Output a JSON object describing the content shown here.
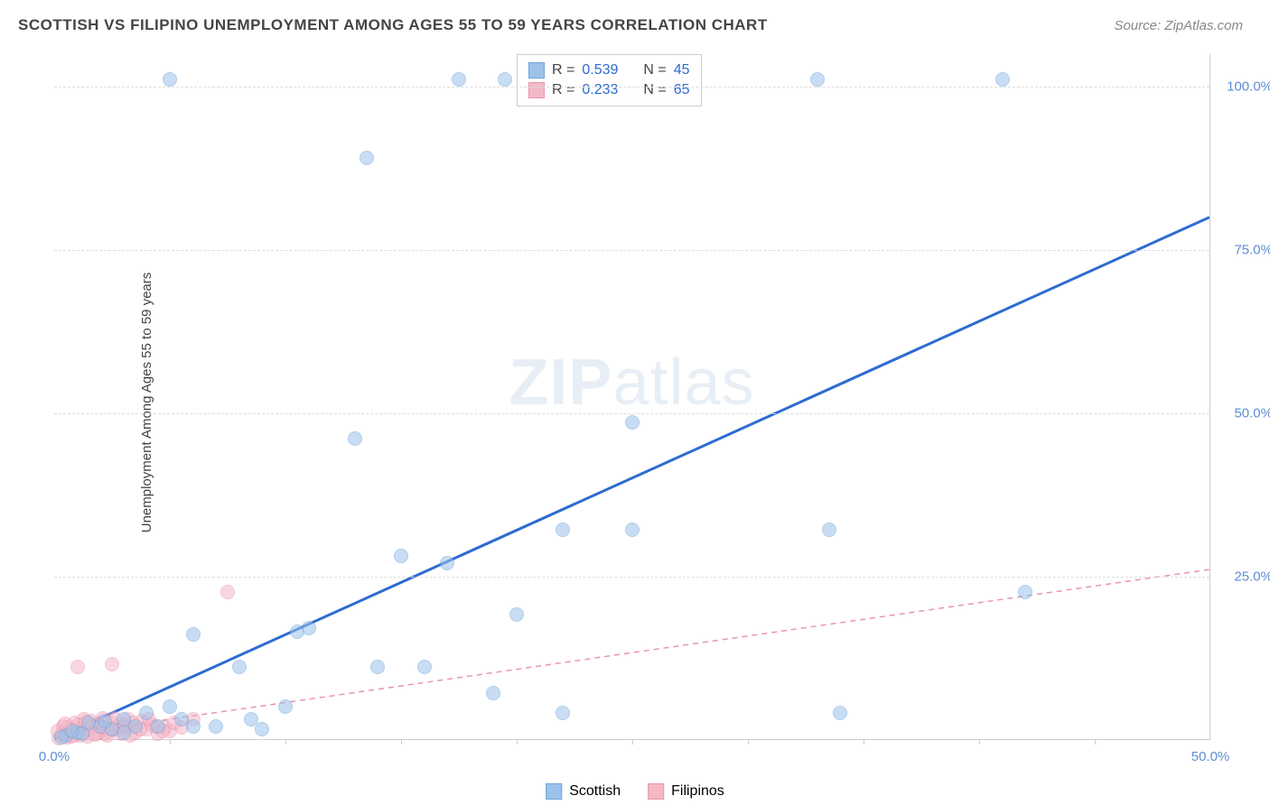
{
  "title": "SCOTTISH VS FILIPINO UNEMPLOYMENT AMONG AGES 55 TO 59 YEARS CORRELATION CHART",
  "source": "Source: ZipAtlas.com",
  "ylabel": "Unemployment Among Ages 55 to 59 years",
  "watermark_bold": "ZIP",
  "watermark_light": "atlas",
  "chart": {
    "type": "scatter",
    "xlim": [
      0,
      50
    ],
    "ylim": [
      0,
      105
    ],
    "xticks": [
      0,
      50
    ],
    "xtick_labels": [
      "0.0%",
      "50.0%"
    ],
    "yticks": [
      25,
      50,
      75,
      100
    ],
    "ytick_labels": [
      "25.0%",
      "50.0%",
      "75.0%",
      "100.0%"
    ],
    "xtick_marks": [
      5,
      10,
      15,
      20,
      25,
      30,
      35,
      40,
      45
    ],
    "grid_color": "#dddddd",
    "background_color": "#ffffff",
    "point_radius": 8,
    "point_opacity": 0.55,
    "series": [
      {
        "name": "Scottish",
        "color": "#9cc3eb",
        "stroke": "#6fa3d8",
        "trend_color": "#2d6bd1",
        "trend_width": 3,
        "trend_dash": "none",
        "trend": {
          "x1": 0,
          "y1": 0,
          "x2": 50,
          "y2": 80
        },
        "R": "0.539",
        "N": "45",
        "points": [
          [
            17.5,
            101
          ],
          [
            19.5,
            101
          ],
          [
            33,
            101
          ],
          [
            41,
            101
          ],
          [
            5,
            101
          ],
          [
            13.5,
            89
          ],
          [
            25,
            48.5
          ],
          [
            13,
            46
          ],
          [
            25,
            32
          ],
          [
            22,
            32
          ],
          [
            33.5,
            32
          ],
          [
            15,
            28
          ],
          [
            17,
            27
          ],
          [
            42,
            22.5
          ],
          [
            20,
            19
          ],
          [
            11,
            17
          ],
          [
            10.5,
            16.5
          ],
          [
            6,
            16
          ],
          [
            19,
            7
          ],
          [
            16,
            11
          ],
          [
            14,
            11
          ],
          [
            8,
            11
          ],
          [
            22,
            4
          ],
          [
            10,
            5
          ],
          [
            5,
            5
          ],
          [
            5.5,
            3
          ],
          [
            4,
            4
          ],
          [
            34,
            4
          ],
          [
            1,
            1
          ],
          [
            2,
            2
          ],
          [
            3,
            3
          ],
          [
            1.5,
            2.5
          ],
          [
            2.5,
            1.5
          ],
          [
            3.5,
            2
          ],
          [
            0.5,
            0.5
          ],
          [
            0.8,
            1.2
          ],
          [
            1.2,
            0.8
          ],
          [
            2.2,
            2.8
          ],
          [
            4.5,
            2
          ],
          [
            6,
            2
          ],
          [
            3,
            1
          ],
          [
            7,
            2
          ],
          [
            8.5,
            3
          ],
          [
            9,
            1.5
          ],
          [
            0.3,
            0.3
          ]
        ]
      },
      {
        "name": "Filipinos",
        "color": "#f5b8c7",
        "stroke": "#e994ae",
        "trend_color": "#e994ae",
        "trend_width": 1.5,
        "trend_dash": "6,5",
        "trend": {
          "x1": 0,
          "y1": 0.5,
          "x2": 50,
          "y2": 26
        },
        "R": "0.233",
        "N": "65",
        "points": [
          [
            7.5,
            22.5
          ],
          [
            1,
            11
          ],
          [
            2.5,
            11.5
          ],
          [
            6,
            3
          ],
          [
            0.3,
            0.5
          ],
          [
            0.5,
            1
          ],
          [
            0.8,
            0.8
          ],
          [
            1,
            1.5
          ],
          [
            1.2,
            2
          ],
          [
            1.5,
            1.2
          ],
          [
            1.8,
            2.2
          ],
          [
            2,
            1.8
          ],
          [
            2.2,
            0.8
          ],
          [
            2.5,
            2.5
          ],
          [
            2.8,
            1.5
          ],
          [
            3,
            2
          ],
          [
            3.2,
            3
          ],
          [
            3.5,
            1
          ],
          [
            3.8,
            2.8
          ],
          [
            4,
            1.5
          ],
          [
            4.2,
            2.2
          ],
          [
            4.5,
            0.8
          ],
          [
            4.8,
            1.8
          ],
          [
            5,
            1.2
          ],
          [
            0.4,
            2
          ],
          [
            0.6,
            1.8
          ],
          [
            0.9,
            2.5
          ],
          [
            1.1,
            0.5
          ],
          [
            1.3,
            3
          ],
          [
            1.6,
            2.8
          ],
          [
            1.9,
            1
          ],
          [
            2.1,
            3.2
          ],
          [
            2.4,
            1.2
          ],
          [
            2.7,
            2
          ],
          [
            3.1,
            1.8
          ],
          [
            3.4,
            2.5
          ],
          [
            3.7,
            1.5
          ],
          [
            4.1,
            3
          ],
          [
            4.4,
            2
          ],
          [
            4.7,
            1.2
          ],
          [
            5.2,
            2.5
          ],
          [
            5.5,
            1.8
          ],
          [
            0.2,
            0.2
          ],
          [
            0.35,
            0.8
          ],
          [
            0.55,
            0.3
          ],
          [
            0.7,
            1.5
          ],
          [
            0.85,
            0.6
          ],
          [
            1.05,
            2.2
          ],
          [
            1.25,
            1
          ],
          [
            1.45,
            0.4
          ],
          [
            1.65,
            1.8
          ],
          [
            1.85,
            0.9
          ],
          [
            2.05,
            2.5
          ],
          [
            2.3,
            0.6
          ],
          [
            2.55,
            1.5
          ],
          [
            2.9,
            0.8
          ],
          [
            3.3,
            0.5
          ],
          [
            0.15,
            1.2
          ],
          [
            0.45,
            2.3
          ],
          [
            0.75,
            0.4
          ],
          [
            1.35,
            2.6
          ],
          [
            1.75,
            0.7
          ],
          [
            2.15,
            1.8
          ],
          [
            2.6,
            3.2
          ],
          [
            3.05,
            2.2
          ]
        ]
      }
    ],
    "stats_box": {
      "left_pct": 40,
      "top_pct": 0
    },
    "legend_bottom": [
      {
        "label": "Scottish",
        "fill": "#9cc3eb",
        "stroke": "#6fa3d8"
      },
      {
        "label": "Filipinos",
        "fill": "#f5b8c7",
        "stroke": "#e994ae"
      }
    ],
    "stat_label_color": "#444444",
    "stat_value_color": "#2d6bd1"
  }
}
